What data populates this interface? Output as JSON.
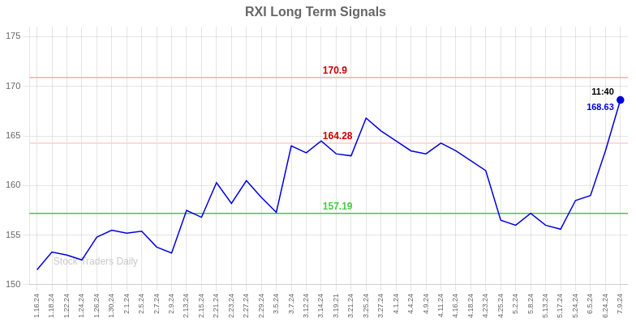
{
  "chart_data": {
    "type": "line",
    "title": "RXI Long Term Signals",
    "watermark": "Stock Traders Daily",
    "categories": [
      "1.16.24",
      "1.18.24",
      "1.22.24",
      "1.24.24",
      "1.26.24",
      "1.30.24",
      "2.1.24",
      "2.5.24",
      "2.7.24",
      "2.9.24",
      "2.13.24",
      "2.15.24",
      "2.21.24",
      "2.23.24",
      "2.27.24",
      "2.29.24",
      "3.5.24",
      "3.7.24",
      "3.12.24",
      "3.14.24",
      "3.19.21",
      "3.21.24",
      "3.25.24",
      "3.27.24",
      "4.1.24",
      "4.4.24",
      "4.9.24",
      "4.11.24",
      "4.16.24",
      "4.18.24",
      "4.23.24",
      "4.25.24",
      "5.2.24",
      "5.8.24",
      "5.13.24",
      "5.17.24",
      "5.24.24",
      "6.5.24",
      "6.24.24",
      "7.9.24"
    ],
    "values": [
      151.5,
      153.3,
      153.0,
      152.5,
      154.8,
      155.5,
      155.2,
      155.4,
      153.8,
      153.2,
      157.5,
      156.8,
      160.3,
      158.2,
      160.5,
      158.8,
      157.3,
      164.0,
      163.3,
      164.5,
      163.2,
      163.0,
      166.8,
      165.5,
      164.5,
      163.5,
      163.2,
      164.28,
      163.5,
      162.5,
      161.5,
      156.5,
      156.0,
      157.2,
      156.0,
      155.6,
      158.5,
      159.0,
      163.5,
      168.63
    ],
    "color": "#0000dd",
    "hlines": [
      {
        "y": 170.9,
        "color": "#ffaaaa",
        "label": "170.9",
        "label_color": "#cc0000"
      },
      {
        "y": 164.28,
        "color": "#ffcccc",
        "label": "164.28",
        "label_color": "#cc0000"
      },
      {
        "y": 157.19,
        "color": "#44cc44",
        "label": "157.19",
        "label_color": "#44cc44"
      }
    ],
    "annotations": [
      {
        "text": "11:40",
        "x": "7.9.24",
        "y": 168.63,
        "color": "#000000"
      },
      {
        "text": "168.63",
        "x": "7.9.24",
        "y": 168.63,
        "color": "#0000dd"
      }
    ],
    "ylim": [
      150,
      176
    ],
    "yticks": [
      150,
      155,
      160,
      165,
      170,
      175
    ],
    "grid": true
  }
}
